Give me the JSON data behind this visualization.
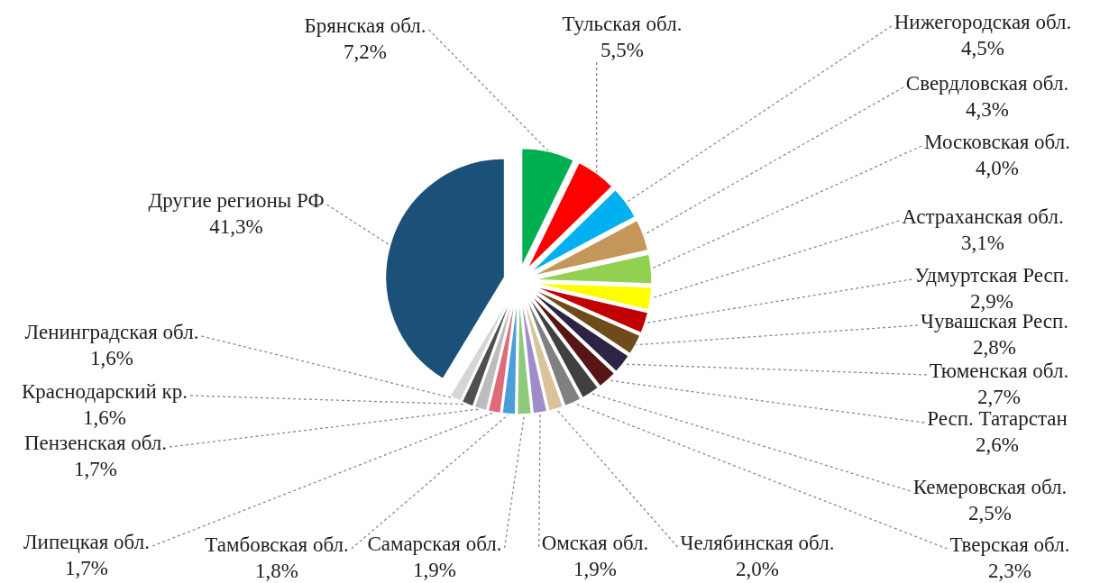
{
  "chart_data": {
    "type": "pie",
    "categories": [
      "Брянская обл.",
      "Тульская обл.",
      "Нижегородская обл.",
      "Свердловская обл.",
      "Московская обл.",
      "Астраханская обл.",
      "Удмуртская Респ.",
      "Чувашская Респ.",
      "Тюменская обл.",
      "Респ. Татарстан",
      "Кемеровская обл.",
      "Тверская обл.",
      "Челябинская обл.",
      "Омская обл.",
      "Самарская обл.",
      "Тамбовская обл.",
      "Липецкая обл.",
      "Пензенская обл.",
      "Краснодарский кр.",
      "Ленинградская обл.",
      "Другие регионы РФ"
    ],
    "values": [
      7.2,
      5.5,
      4.5,
      4.3,
      4.0,
      3.1,
      2.9,
      2.8,
      2.7,
      2.6,
      2.5,
      2.3,
      2.0,
      1.9,
      1.9,
      1.8,
      1.7,
      1.7,
      1.6,
      1.6,
      41.3
    ],
    "value_labels": [
      "7,2%",
      "5,5%",
      "4,5%",
      "4,3%",
      "4,0%",
      "3,1%",
      "2,9%",
      "2,8%",
      "2,7%",
      "2,6%",
      "2,5%",
      "2,3%",
      "2,0%",
      "1,9%",
      "1,9%",
      "1,8%",
      "1,7%",
      "1,7%",
      "1,6%",
      "1,6%",
      "41,3%"
    ],
    "colors": [
      "#00b050",
      "#ff0000",
      "#00b0f0",
      "#c4965a",
      "#92d050",
      "#ffff00",
      "#c00000",
      "#6e4b1b",
      "#2d2445",
      "#581515",
      "#404040",
      "#808080",
      "#d9c49a",
      "#a08cc8",
      "#8ec97d",
      "#4a9fd8",
      "#de6b77",
      "#bcbcbc",
      "#4f4f4f",
      "#d6d6d6",
      "#1b5079"
    ]
  }
}
